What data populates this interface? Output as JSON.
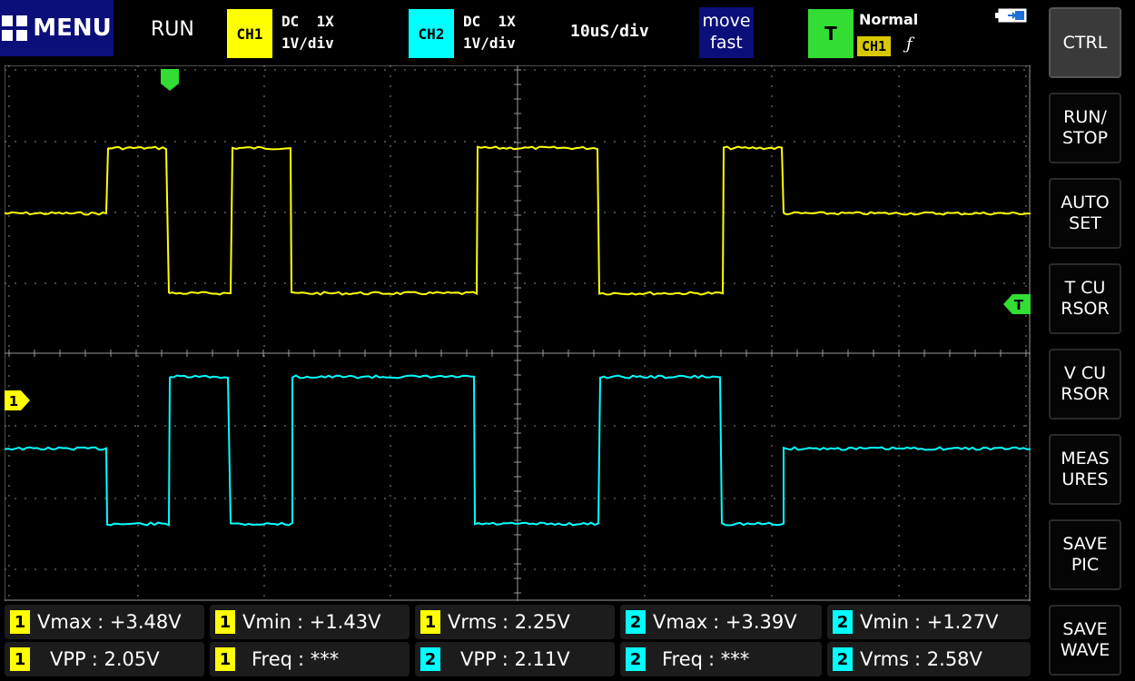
{
  "header": {
    "menu_label": "MENU",
    "run_status": "RUN",
    "ch1": {
      "badge": "CH1",
      "coupling": "DC  1X",
      "scale": "1V/div"
    },
    "ch2": {
      "badge": "CH2",
      "coupling": "DC  1X",
      "scale": "1V/div"
    },
    "timebase": "10uS/div",
    "move_line1": "move",
    "move_line2": "fast",
    "trigger": {
      "badge": "T",
      "mode": "Normal",
      "source": "CH1",
      "edge": "ƒ"
    }
  },
  "screen": {
    "trigger_level_marker": "T",
    "ch1_marker": "1"
  },
  "sidebar": {
    "buttons": [
      {
        "label": "CTRL"
      },
      {
        "label": "RUN/\nSTOP"
      },
      {
        "label": "AUTO\nSET"
      },
      {
        "label": "T CU\nRSOR"
      },
      {
        "label": "V CU\nRSOR"
      },
      {
        "label": "MEAS\nURES"
      },
      {
        "label": "SAVE\nPIC"
      },
      {
        "label": "SAVE\nWAVE"
      }
    ]
  },
  "measurements": [
    {
      "ch": "1",
      "label": "Vmax",
      "value": ": +3.48V"
    },
    {
      "ch": "1",
      "label": "Vmin",
      "value": ": +1.43V"
    },
    {
      "ch": "1",
      "label": "Vrms",
      "value": ": 2.25V"
    },
    {
      "ch": "2",
      "label": "Vmax",
      "value": ": +3.39V"
    },
    {
      "ch": "2",
      "label": "Vmin",
      "value": ": +1.27V"
    },
    {
      "ch": "1",
      "label": "VPP",
      "value": ": 2.05V"
    },
    {
      "ch": "1",
      "label": "Freq",
      "value": ": ***"
    },
    {
      "ch": "2",
      "label": "VPP",
      "value": ": 2.11V"
    },
    {
      "ch": "2",
      "label": "Freq",
      "value": ": ***"
    },
    {
      "ch": "2",
      "label": "Vrms",
      "value": ": 2.58V"
    }
  ],
  "colors": {
    "ch1": "#ffff00",
    "ch2": "#00ffff",
    "trigger": "#33dd33",
    "menu_bg": "#0a0f7a"
  }
}
